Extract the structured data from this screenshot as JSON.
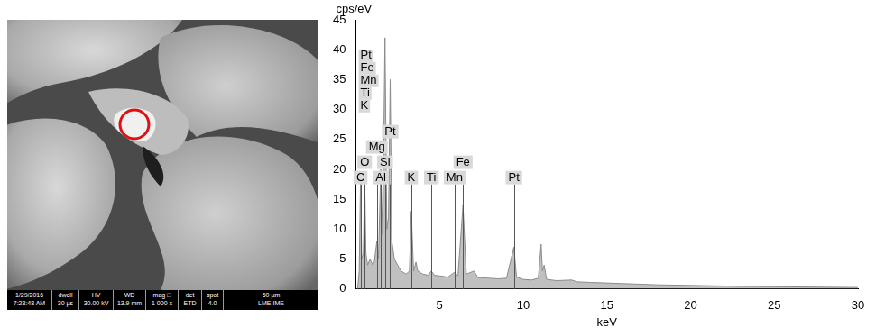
{
  "chart_data": {
    "type": "line",
    "y_label": "cps/eV",
    "x_label": "keV",
    "x": [
      0.1,
      0.2,
      0.277,
      0.35,
      0.45,
      0.525,
      0.6,
      0.7,
      0.85,
      1.0,
      1.1,
      1.254,
      1.35,
      1.487,
      1.6,
      1.74,
      1.85,
      1.95,
      2.05,
      2.15,
      2.3,
      2.5,
      2.7,
      3.0,
      3.2,
      3.31,
      3.45,
      3.59,
      3.7,
      4.0,
      4.3,
      4.51,
      4.7,
      5.0,
      5.5,
      5.9,
      6.1,
      6.4,
      6.6,
      7.06,
      7.3,
      8.0,
      8.5,
      9.0,
      9.44,
      9.6,
      10.0,
      10.5,
      10.9,
      11.07,
      11.15,
      11.25,
      11.4,
      12.0,
      12.9,
      13.2,
      14,
      16,
      18,
      20,
      22,
      24,
      26,
      28,
      30
    ],
    "values": [
      0,
      3,
      18,
      5,
      6,
      19,
      6,
      4,
      5,
      4,
      4.5,
      8,
      5,
      20,
      9,
      42,
      10,
      12,
      35,
      8,
      5,
      4,
      3,
      2.5,
      3,
      13,
      3,
      4.5,
      3,
      2.5,
      2.3,
      3,
      2.3,
      2.2,
      2,
      2.8,
      2.2,
      14,
      2.5,
      3,
      1.9,
      1.8,
      1.7,
      1.8,
      7,
      2,
      1.6,
      1.5,
      1.8,
      7.5,
      3,
      4,
      1.6,
      1.4,
      1.5,
      1.2,
      1.1,
      0.9,
      0.7,
      0.6,
      0.5,
      0.4,
      0.35,
      0.3,
      0.25
    ],
    "color": "#8c8c8c",
    "xlim": [
      0,
      30
    ],
    "xticks": [
      5,
      10,
      15,
      20,
      25,
      30
    ],
    "ylim": [
      0,
      45
    ],
    "yticks": [
      0,
      5,
      10,
      15,
      20,
      25,
      30,
      35,
      40,
      45
    ],
    "grid": false,
    "element_list": [
      "Pt",
      "Fe",
      "Mn",
      "Ti",
      "K"
    ],
    "annotations": [
      {
        "text": "C",
        "x": 0.277
      },
      {
        "text": "O",
        "x": 0.525
      },
      {
        "text": "Mg",
        "x": 1.254
      },
      {
        "text": "Al",
        "x": 1.487
      },
      {
        "text": "Si",
        "x": 1.74
      },
      {
        "text": "Pt",
        "x": 2.05
      },
      {
        "text": "K",
        "x": 3.313
      },
      {
        "text": "Ti",
        "x": 4.51
      },
      {
        "text": "Mn",
        "x": 5.899
      },
      {
        "text": "Fe",
        "x": 6.404
      },
      {
        "text": "Pt",
        "x": 9.442
      }
    ]
  },
  "micrograph": {
    "databar": {
      "date": "1/29/2016",
      "time": "7:23:48 AM",
      "fields": [
        {
          "label": "dwell",
          "value": "30 µs"
        },
        {
          "label": "HV",
          "value": "30.00 kV"
        },
        {
          "label": "WD",
          "value": "13.9 mm"
        },
        {
          "label": "mag □",
          "value": "1 000 x"
        },
        {
          "label": "det",
          "value": "ETD"
        },
        {
          "label": "spot",
          "value": "4.0"
        }
      ],
      "scale_bar": "50 µm",
      "footer": "LME IME"
    }
  }
}
